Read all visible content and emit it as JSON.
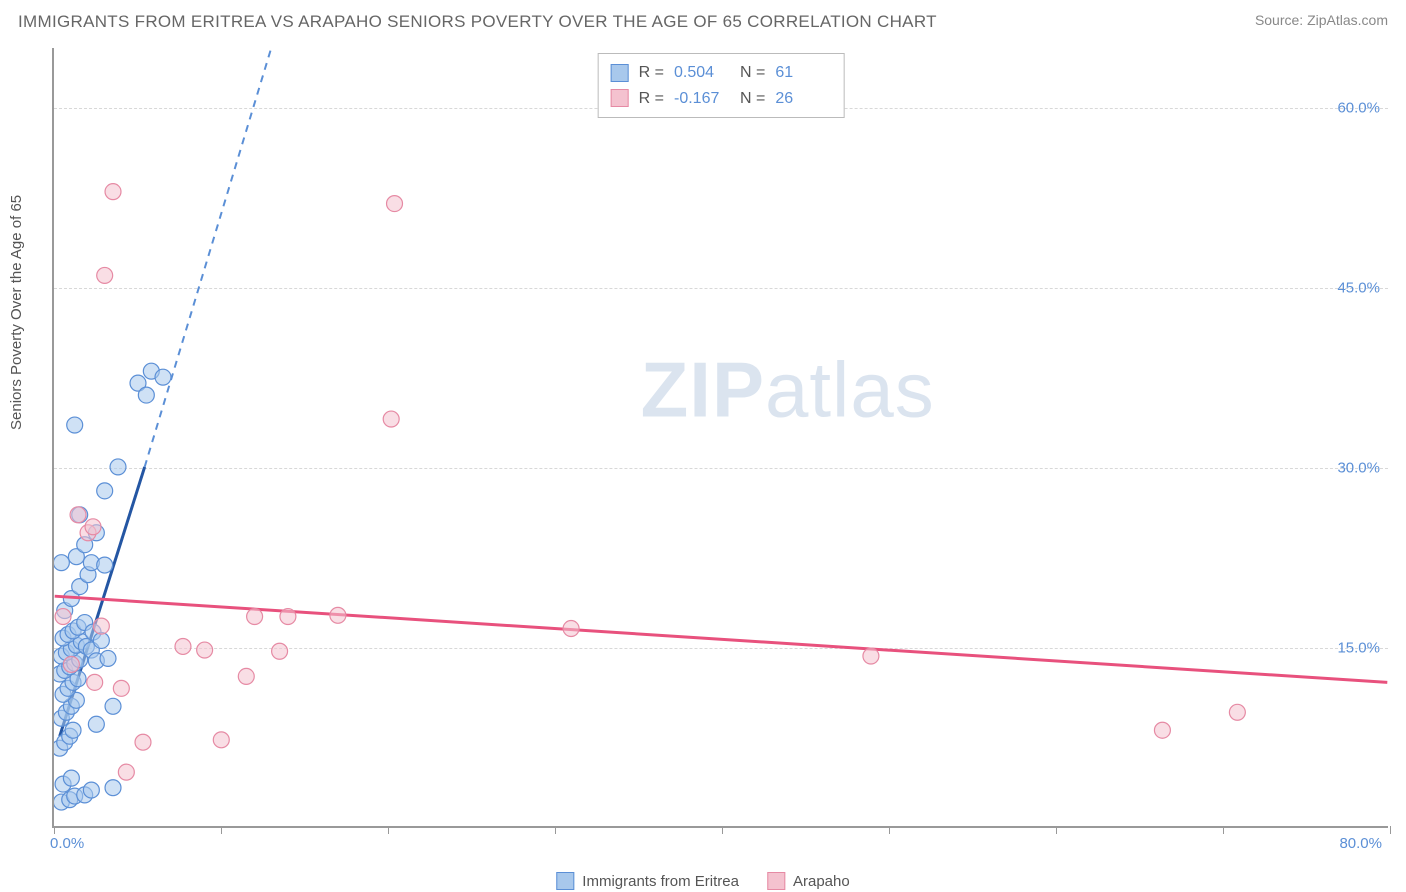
{
  "header": {
    "title": "IMMIGRANTS FROM ERITREA VS ARAPAHO SENIORS POVERTY OVER THE AGE OF 65 CORRELATION CHART",
    "source": "Source: ZipAtlas.com"
  },
  "chart": {
    "type": "scatter",
    "ylabel": "Seniors Poverty Over the Age of 65",
    "watermark_1": "ZIP",
    "watermark_2": "atlas",
    "background_color": "#ffffff",
    "grid_color": "#d8d8d8",
    "axis_color": "#999999",
    "xlim": [
      0,
      80
    ],
    "ylim": [
      0,
      65
    ],
    "xticks": [
      0,
      10,
      20,
      30,
      40,
      50,
      60,
      70,
      80
    ],
    "xtick_labels": {
      "0": "0.0%",
      "80": "80.0%"
    },
    "yticks": [
      15,
      30,
      45,
      60
    ],
    "ytick_labels": [
      "15.0%",
      "30.0%",
      "45.0%",
      "60.0%"
    ],
    "label_color": "#5b8fd6",
    "label_fontsize": 15,
    "marker_radius": 8,
    "marker_opacity": 0.55,
    "series": [
      {
        "name": "Immigrants from Eritrea",
        "fill_color": "#a8c8ec",
        "stroke_color": "#5b8fd6",
        "trend_color": "#2456a3",
        "trend_dash_color": "#5b8fd6",
        "R": "0.504",
        "N": "61",
        "trend_solid": {
          "x1": 0.3,
          "y1": 7.5,
          "x2": 5.4,
          "y2": 30.0
        },
        "trend_dash": {
          "x1": 5.4,
          "y1": 30.0,
          "x2": 13.0,
          "y2": 65.0
        },
        "points": [
          [
            0.4,
            2.0
          ],
          [
            0.9,
            2.2
          ],
          [
            1.2,
            2.5
          ],
          [
            1.8,
            2.6
          ],
          [
            0.5,
            3.5
          ],
          [
            1.0,
            4.0
          ],
          [
            2.2,
            3.0
          ],
          [
            3.5,
            3.2
          ],
          [
            0.3,
            6.5
          ],
          [
            0.6,
            7.0
          ],
          [
            0.9,
            7.5
          ],
          [
            1.1,
            8.0
          ],
          [
            0.4,
            9.0
          ],
          [
            0.7,
            9.5
          ],
          [
            1.0,
            10.0
          ],
          [
            1.3,
            10.5
          ],
          [
            0.5,
            11.0
          ],
          [
            0.8,
            11.5
          ],
          [
            1.1,
            12.0
          ],
          [
            1.4,
            12.3
          ],
          [
            0.3,
            12.7
          ],
          [
            0.6,
            13.0
          ],
          [
            0.9,
            13.3
          ],
          [
            1.2,
            13.6
          ],
          [
            1.5,
            13.9
          ],
          [
            0.4,
            14.2
          ],
          [
            0.7,
            14.5
          ],
          [
            1.0,
            14.8
          ],
          [
            1.3,
            15.1
          ],
          [
            1.6,
            15.4
          ],
          [
            1.9,
            15.0
          ],
          [
            2.2,
            14.7
          ],
          [
            2.5,
            13.8
          ],
          [
            0.5,
            15.7
          ],
          [
            0.8,
            16.0
          ],
          [
            1.1,
            16.3
          ],
          [
            1.4,
            16.6
          ],
          [
            1.8,
            17.0
          ],
          [
            2.3,
            16.2
          ],
          [
            2.8,
            15.5
          ],
          [
            3.2,
            14.0
          ],
          [
            0.6,
            18.0
          ],
          [
            1.0,
            19.0
          ],
          [
            1.5,
            20.0
          ],
          [
            2.0,
            21.0
          ],
          [
            0.4,
            22.0
          ],
          [
            1.3,
            22.5
          ],
          [
            2.2,
            22.0
          ],
          [
            3.0,
            21.8
          ],
          [
            1.8,
            23.5
          ],
          [
            2.5,
            24.5
          ],
          [
            1.5,
            26.0
          ],
          [
            3.0,
            28.0
          ],
          [
            3.8,
            30.0
          ],
          [
            1.2,
            33.5
          ],
          [
            5.0,
            37.0
          ],
          [
            5.8,
            38.0
          ],
          [
            6.5,
            37.5
          ],
          [
            5.5,
            36.0
          ],
          [
            2.5,
            8.5
          ],
          [
            3.5,
            10.0
          ]
        ]
      },
      {
        "name": "Arapaho",
        "fill_color": "#f4c2cf",
        "stroke_color": "#e68aa4",
        "trend_color": "#e8517d",
        "R": "-0.167",
        "N": "26",
        "trend_solid": {
          "x1": 0.0,
          "y1": 19.2,
          "x2": 80.0,
          "y2": 12.0
        },
        "points": [
          [
            0.5,
            17.5
          ],
          [
            1.0,
            13.5
          ],
          [
            1.4,
            26.0
          ],
          [
            2.4,
            12.0
          ],
          [
            2.0,
            24.5
          ],
          [
            2.3,
            25.0
          ],
          [
            3.0,
            46.0
          ],
          [
            3.5,
            53.0
          ],
          [
            4.0,
            11.5
          ],
          [
            4.3,
            4.5
          ],
          [
            5.3,
            7.0
          ],
          [
            7.7,
            15.0
          ],
          [
            9.0,
            14.7
          ],
          [
            10.0,
            7.2
          ],
          [
            11.5,
            12.5
          ],
          [
            12.0,
            17.5
          ],
          [
            13.5,
            14.6
          ],
          [
            14.0,
            17.5
          ],
          [
            17.0,
            17.6
          ],
          [
            20.4,
            52.0
          ],
          [
            20.2,
            34.0
          ],
          [
            31.0,
            16.5
          ],
          [
            49.0,
            14.2
          ],
          [
            66.5,
            8.0
          ],
          [
            71.0,
            9.5
          ],
          [
            2.8,
            16.7
          ]
        ]
      }
    ]
  },
  "legend_bottom": [
    {
      "label": "Immigrants from Eritrea",
      "fill": "#a8c8ec",
      "stroke": "#5b8fd6"
    },
    {
      "label": "Arapaho",
      "fill": "#f4c2cf",
      "stroke": "#e68aa4"
    }
  ]
}
